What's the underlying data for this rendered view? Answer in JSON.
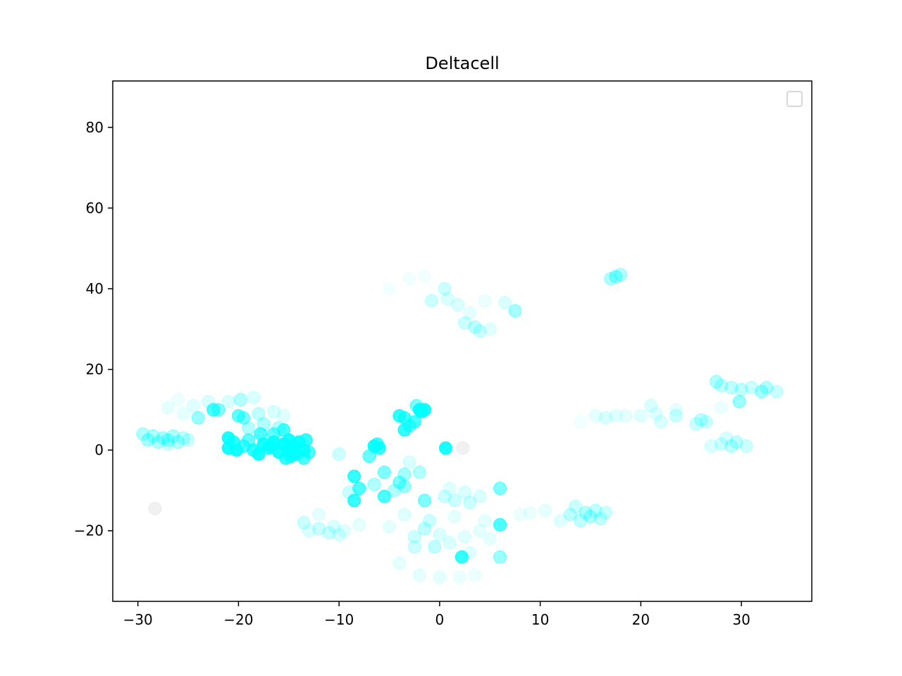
{
  "chart_data": {
    "type": "scatter",
    "title": "Deltacell",
    "xlabel": "",
    "ylabel": "",
    "xlim": [
      -32.5,
      37
    ],
    "ylim": [
      -37.5,
      91.5
    ],
    "xticks": [
      -30,
      -20,
      -10,
      0,
      10,
      20,
      30
    ],
    "xtick_labels": [
      "−30",
      "−20",
      "−10",
      "0",
      "10",
      "20",
      "30"
    ],
    "yticks": [
      -20,
      0,
      20,
      40,
      60,
      80
    ],
    "ytick_labels": [
      "−20",
      "0",
      "20",
      "40",
      "60",
      "80"
    ],
    "grid": false,
    "legend": {
      "placement": "top-right",
      "entries": []
    },
    "colors": {
      "point": "#00ffff",
      "background_point": "#d8d8d8"
    },
    "series": [
      {
        "color": "#00ffff",
        "points": [
          {
            "x": -21.0,
            "y": 3.0,
            "a": 0.9
          },
          {
            "x": -21.0,
            "y": 0.5,
            "a": 0.9
          },
          {
            "x": -20.2,
            "y": 0.0,
            "a": 0.9
          },
          {
            "x": -20.5,
            "y": 2.0,
            "a": 0.8
          },
          {
            "x": -19.5,
            "y": 1.0,
            "a": 0.7
          },
          {
            "x": -19.0,
            "y": 2.5,
            "a": 0.6
          },
          {
            "x": -18.5,
            "y": 0.0,
            "a": 0.8
          },
          {
            "x": -18.0,
            "y": -1.0,
            "a": 0.9
          },
          {
            "x": -17.5,
            "y": 1.5,
            "a": 0.9
          },
          {
            "x": -17.8,
            "y": 4.0,
            "a": 0.7
          },
          {
            "x": -17.0,
            "y": 0.5,
            "a": 0.8
          },
          {
            "x": -16.5,
            "y": 2.0,
            "a": 0.9
          },
          {
            "x": -16.5,
            "y": 4.0,
            "a": 0.6
          },
          {
            "x": -16.0,
            "y": -0.5,
            "a": 0.9
          },
          {
            "x": -15.5,
            "y": 1.5,
            "a": 0.95
          },
          {
            "x": -15.5,
            "y": 5.0,
            "a": 0.7
          },
          {
            "x": -15.3,
            "y": -2.0,
            "a": 0.8
          },
          {
            "x": -15.0,
            "y": 0.0,
            "a": 0.95
          },
          {
            "x": -15.0,
            "y": 2.5,
            "a": 0.9
          },
          {
            "x": -14.5,
            "y": 1.0,
            "a": 0.95
          },
          {
            "x": -14.3,
            "y": -1.0,
            "a": 0.9
          },
          {
            "x": -14.0,
            "y": 2.0,
            "a": 0.9
          },
          {
            "x": -13.5,
            "y": 0.0,
            "a": 0.9
          },
          {
            "x": -13.5,
            "y": -2.0,
            "a": 0.7
          },
          {
            "x": -13.3,
            "y": 2.5,
            "a": 0.8
          },
          {
            "x": -13.0,
            "y": -0.5,
            "a": 0.7
          },
          {
            "x": -16.8,
            "y": 1.0,
            "a": 0.9
          },
          {
            "x": -14.8,
            "y": -1.5,
            "a": 0.8
          },
          {
            "x": -22.5,
            "y": 10.0,
            "a": 0.7
          },
          {
            "x": -24.0,
            "y": 8.0,
            "a": 0.4
          },
          {
            "x": -22.0,
            "y": 10.0,
            "a": 0.5
          },
          {
            "x": -20.0,
            "y": 8.5,
            "a": 0.6
          },
          {
            "x": -19.5,
            "y": 8.0,
            "a": 0.5
          },
          {
            "x": -19.8,
            "y": 12.5,
            "a": 0.3
          },
          {
            "x": -18.5,
            "y": 13.0,
            "a": 0.15
          },
          {
            "x": -18.0,
            "y": 9.0,
            "a": 0.25
          },
          {
            "x": -17.5,
            "y": 6.5,
            "a": 0.3
          },
          {
            "x": -16.5,
            "y": 9.5,
            "a": 0.15
          },
          {
            "x": -15.5,
            "y": 8.5,
            "a": 0.12
          },
          {
            "x": -21.0,
            "y": 12.0,
            "a": 0.15
          },
          {
            "x": -23.0,
            "y": 12.0,
            "a": 0.15
          },
          {
            "x": -24.5,
            "y": 11.0,
            "a": 0.12
          },
          {
            "x": -25.5,
            "y": 9.0,
            "a": 0.1
          },
          {
            "x": -27.0,
            "y": 10.5,
            "a": 0.1
          },
          {
            "x": -26.0,
            "y": 12.5,
            "a": 0.08
          },
          {
            "x": -19.0,
            "y": 5.5,
            "a": 0.3
          },
          {
            "x": -16.0,
            "y": 5.5,
            "a": 0.3
          },
          {
            "x": -29.5,
            "y": 4.0,
            "a": 0.3
          },
          {
            "x": -29.0,
            "y": 2.5,
            "a": 0.35
          },
          {
            "x": -28.5,
            "y": 3.5,
            "a": 0.3
          },
          {
            "x": -28.0,
            "y": 2.0,
            "a": 0.3
          },
          {
            "x": -27.5,
            "y": 3.0,
            "a": 0.35
          },
          {
            "x": -27.0,
            "y": 2.5,
            "a": 0.35
          },
          {
            "x": -26.5,
            "y": 3.5,
            "a": 0.3
          },
          {
            "x": -26.0,
            "y": 2.0,
            "a": 0.3
          },
          {
            "x": -25.5,
            "y": 3.0,
            "a": 0.25
          },
          {
            "x": -25.0,
            "y": 2.5,
            "a": 0.2
          },
          {
            "x": -27.0,
            "y": 1.5,
            "a": 0.2
          },
          {
            "x": -4.0,
            "y": 8.5,
            "a": 0.8
          },
          {
            "x": -3.5,
            "y": 8.0,
            "a": 0.7
          },
          {
            "x": -3.5,
            "y": 5.0,
            "a": 0.8
          },
          {
            "x": -3.0,
            "y": 6.0,
            "a": 0.6
          },
          {
            "x": -2.5,
            "y": 7.0,
            "a": 0.7
          },
          {
            "x": -2.0,
            "y": 10.0,
            "a": 0.9
          },
          {
            "x": -1.5,
            "y": 10.0,
            "a": 0.9
          },
          {
            "x": -1.8,
            "y": 9.5,
            "a": 0.8
          },
          {
            "x": -2.3,
            "y": 11.0,
            "a": 0.5
          },
          {
            "x": -6.5,
            "y": 1.0,
            "a": 0.9
          },
          {
            "x": -6.2,
            "y": 1.5,
            "a": 0.7
          },
          {
            "x": -6.0,
            "y": 0.5,
            "a": 0.8
          },
          {
            "x": -7.0,
            "y": -1.5,
            "a": 0.6
          },
          {
            "x": 0.6,
            "y": 0.5,
            "a": 0.9
          },
          {
            "x": -8.5,
            "y": -6.5,
            "a": 0.8
          },
          {
            "x": -8.0,
            "y": -9.5,
            "a": 0.7
          },
          {
            "x": -8.5,
            "y": -12.5,
            "a": 0.8
          },
          {
            "x": -5.5,
            "y": -11.5,
            "a": 0.7
          },
          {
            "x": -5.5,
            "y": -5.5,
            "a": 0.5
          },
          {
            "x": -4.0,
            "y": -8.0,
            "a": 0.5
          },
          {
            "x": -3.5,
            "y": -9.0,
            "a": 0.4
          },
          {
            "x": -3.5,
            "y": -6.0,
            "a": 0.35
          },
          {
            "x": -2.0,
            "y": -5.5,
            "a": 0.3
          },
          {
            "x": -1.5,
            "y": -12.5,
            "a": 0.5
          },
          {
            "x": -4.5,
            "y": -10.0,
            "a": 0.3
          },
          {
            "x": -6.5,
            "y": -8.5,
            "a": 0.3
          },
          {
            "x": -9.0,
            "y": -10.5,
            "a": 0.2
          },
          {
            "x": -3.0,
            "y": -3.0,
            "a": 0.15
          },
          {
            "x": -10.0,
            "y": -1.0,
            "a": 0.2
          },
          {
            "x": 0.5,
            "y": -11.5,
            "a": 0.2
          },
          {
            "x": 1.5,
            "y": -12.5,
            "a": 0.2
          },
          {
            "x": 2.5,
            "y": -10.5,
            "a": 0.15
          },
          {
            "x": 3.0,
            "y": -13.0,
            "a": 0.2
          },
          {
            "x": 4.0,
            "y": -11.5,
            "a": 0.15
          },
          {
            "x": 1.0,
            "y": -9.5,
            "a": 0.12
          },
          {
            "x": 6.0,
            "y": -9.5,
            "a": 0.5
          },
          {
            "x": 6.0,
            "y": -18.5,
            "a": 0.7
          },
          {
            "x": 2.2,
            "y": -26.5,
            "a": 0.8
          },
          {
            "x": 6.0,
            "y": -26.5,
            "a": 0.4
          },
          {
            "x": -13.5,
            "y": -18.0,
            "a": 0.2
          },
          {
            "x": -13.0,
            "y": -20.0,
            "a": 0.15
          },
          {
            "x": -12.0,
            "y": -19.5,
            "a": 0.2
          },
          {
            "x": -11.0,
            "y": -20.5,
            "a": 0.2
          },
          {
            "x": -10.5,
            "y": -19.0,
            "a": 0.15
          },
          {
            "x": -10.0,
            "y": -21.0,
            "a": 0.15
          },
          {
            "x": -9.5,
            "y": -20.0,
            "a": 0.12
          },
          {
            "x": -12.0,
            "y": -16.0,
            "a": 0.1
          },
          {
            "x": -8.0,
            "y": -18.5,
            "a": 0.1
          },
          {
            "x": -1.5,
            "y": -19.5,
            "a": 0.25
          },
          {
            "x": -2.5,
            "y": -21.5,
            "a": 0.2
          },
          {
            "x": -1.0,
            "y": -17.5,
            "a": 0.2
          },
          {
            "x": 0.0,
            "y": -21.0,
            "a": 0.15
          },
          {
            "x": -0.5,
            "y": -24.0,
            "a": 0.25
          },
          {
            "x": -2.5,
            "y": -24.0,
            "a": 0.2
          },
          {
            "x": 1.0,
            "y": -23.0,
            "a": 0.15
          },
          {
            "x": 2.5,
            "y": -21.5,
            "a": 0.12
          },
          {
            "x": 3.0,
            "y": -25.5,
            "a": 0.12
          },
          {
            "x": 4.0,
            "y": -20.0,
            "a": 0.1
          },
          {
            "x": 5.0,
            "y": -22.0,
            "a": 0.1
          },
          {
            "x": -4.0,
            "y": -28.0,
            "a": 0.1
          },
          {
            "x": -2.0,
            "y": -31.0,
            "a": 0.1
          },
          {
            "x": 0.0,
            "y": -31.5,
            "a": 0.1
          },
          {
            "x": 2.0,
            "y": -31.5,
            "a": 0.08
          },
          {
            "x": 3.5,
            "y": -31.0,
            "a": 0.08
          },
          {
            "x": -5.0,
            "y": -19.0,
            "a": 0.1
          },
          {
            "x": -3.5,
            "y": -16.0,
            "a": 0.12
          },
          {
            "x": 1.5,
            "y": -16.5,
            "a": 0.1
          },
          {
            "x": 4.5,
            "y": -17.5,
            "a": 0.1
          },
          {
            "x": 10.5,
            "y": -15.0,
            "a": 0.1
          },
          {
            "x": 12.0,
            "y": -17.5,
            "a": 0.12
          },
          {
            "x": 13.0,
            "y": -16.0,
            "a": 0.25
          },
          {
            "x": 13.5,
            "y": -14.0,
            "a": 0.2
          },
          {
            "x": 14.0,
            "y": -17.5,
            "a": 0.25
          },
          {
            "x": 14.5,
            "y": -15.5,
            "a": 0.3
          },
          {
            "x": 15.0,
            "y": -16.5,
            "a": 0.3
          },
          {
            "x": 15.5,
            "y": -15.0,
            "a": 0.25
          },
          {
            "x": 16.0,
            "y": -17.0,
            "a": 0.25
          },
          {
            "x": 16.5,
            "y": -15.5,
            "a": 0.2
          },
          {
            "x": 8.0,
            "y": -16.0,
            "a": 0.08
          },
          {
            "x": 9.0,
            "y": -15.5,
            "a": 0.08
          },
          {
            "x": -5.0,
            "y": 40.0,
            "a": 0.05
          },
          {
            "x": -3.0,
            "y": 42.5,
            "a": 0.05
          },
          {
            "x": -1.5,
            "y": 43.0,
            "a": 0.05
          },
          {
            "x": 0.5,
            "y": 40.0,
            "a": 0.2
          },
          {
            "x": -0.8,
            "y": 37.0,
            "a": 0.2
          },
          {
            "x": 0.8,
            "y": 37.5,
            "a": 0.15
          },
          {
            "x": 1.8,
            "y": 36.0,
            "a": 0.15
          },
          {
            "x": 2.5,
            "y": 31.5,
            "a": 0.2
          },
          {
            "x": 3.5,
            "y": 30.5,
            "a": 0.25
          },
          {
            "x": 4.0,
            "y": 29.5,
            "a": 0.2
          },
          {
            "x": 3.0,
            "y": 34.0,
            "a": 0.1
          },
          {
            "x": 5.0,
            "y": 30.0,
            "a": 0.12
          },
          {
            "x": 6.5,
            "y": 36.5,
            "a": 0.15
          },
          {
            "x": 7.5,
            "y": 34.5,
            "a": 0.35
          },
          {
            "x": 4.5,
            "y": 37.0,
            "a": 0.08
          },
          {
            "x": 17.5,
            "y": 43.0,
            "a": 0.4
          },
          {
            "x": 18.0,
            "y": 43.5,
            "a": 0.3
          },
          {
            "x": 17.0,
            "y": 42.5,
            "a": 0.3
          },
          {
            "x": 14.0,
            "y": 7.0,
            "a": 0.05
          },
          {
            "x": 15.5,
            "y": 8.5,
            "a": 0.1
          },
          {
            "x": 16.5,
            "y": 8.0,
            "a": 0.15
          },
          {
            "x": 17.5,
            "y": 8.5,
            "a": 0.12
          },
          {
            "x": 18.5,
            "y": 8.5,
            "a": 0.1
          },
          {
            "x": 20.0,
            "y": 8.5,
            "a": 0.12
          },
          {
            "x": 21.0,
            "y": 11.0,
            "a": 0.15
          },
          {
            "x": 21.5,
            "y": 9.0,
            "a": 0.12
          },
          {
            "x": 22.0,
            "y": 7.0,
            "a": 0.15
          },
          {
            "x": 23.5,
            "y": 8.5,
            "a": 0.2
          },
          {
            "x": 23.5,
            "y": 10.0,
            "a": 0.1
          },
          {
            "x": 25.5,
            "y": 6.5,
            "a": 0.2
          },
          {
            "x": 26.0,
            "y": 7.5,
            "a": 0.25
          },
          {
            "x": 26.5,
            "y": 7.0,
            "a": 0.2
          },
          {
            "x": 27.5,
            "y": 17.0,
            "a": 0.3
          },
          {
            "x": 28.0,
            "y": 16.0,
            "a": 0.25
          },
          {
            "x": 29.0,
            "y": 15.5,
            "a": 0.25
          },
          {
            "x": 30.0,
            "y": 15.0,
            "a": 0.25
          },
          {
            "x": 31.0,
            "y": 15.5,
            "a": 0.2
          },
          {
            "x": 32.0,
            "y": 14.5,
            "a": 0.35
          },
          {
            "x": 32.5,
            "y": 15.5,
            "a": 0.3
          },
          {
            "x": 33.5,
            "y": 14.5,
            "a": 0.2
          },
          {
            "x": 29.8,
            "y": 12.0,
            "a": 0.4
          },
          {
            "x": 28.0,
            "y": 10.5,
            "a": 0.08
          },
          {
            "x": 27.0,
            "y": 1.0,
            "a": 0.15
          },
          {
            "x": 28.0,
            "y": 1.5,
            "a": 0.2
          },
          {
            "x": 29.0,
            "y": 1.0,
            "a": 0.25
          },
          {
            "x": 29.5,
            "y": 2.0,
            "a": 0.25
          },
          {
            "x": 30.5,
            "y": 1.0,
            "a": 0.2
          },
          {
            "x": 28.5,
            "y": 3.0,
            "a": 0.15
          }
        ]
      },
      {
        "color": "#d8d8d8",
        "points": [
          {
            "x": -28.3,
            "y": -14.5,
            "a": 0.35
          },
          {
            "x": 2.3,
            "y": 0.5,
            "a": 0.35
          }
        ]
      }
    ]
  }
}
